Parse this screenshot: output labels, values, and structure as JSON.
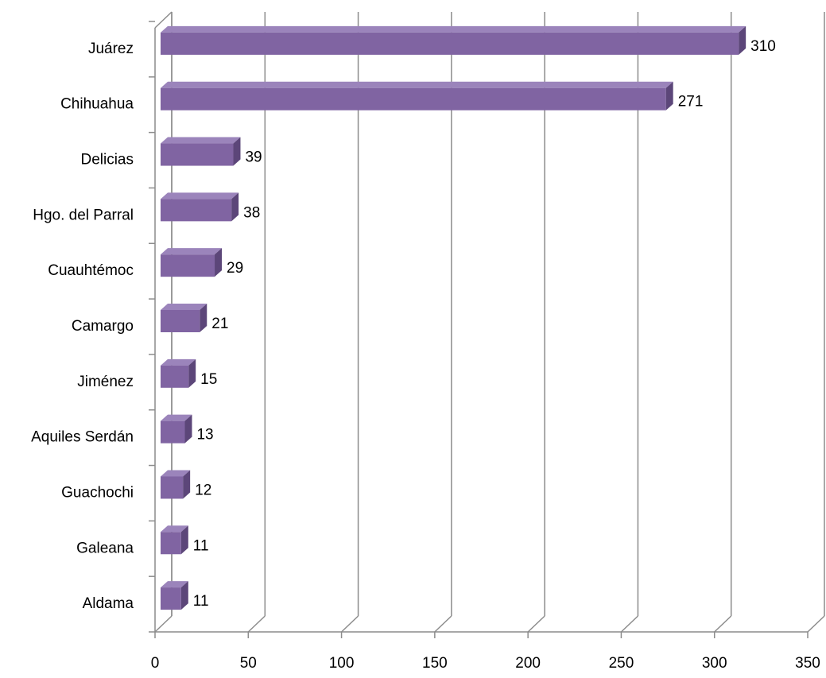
{
  "chart_data": {
    "type": "bar3d_horizontal",
    "categories": [
      "Juárez",
      "Chihuahua",
      "Delicias",
      "Hgo. del Parral",
      "Cuauhtémoc",
      "Camargo",
      "Jiménez",
      "Aquiles Serdán",
      "Guachochi",
      "Galeana",
      "Aldama"
    ],
    "values": [
      310,
      271,
      39,
      38,
      29,
      21,
      15,
      13,
      12,
      11,
      11
    ],
    "color": "#8064a2",
    "xlim": [
      0,
      350
    ],
    "xticks": [
      0,
      50,
      100,
      150,
      200,
      250,
      300,
      350
    ],
    "grid": true
  }
}
